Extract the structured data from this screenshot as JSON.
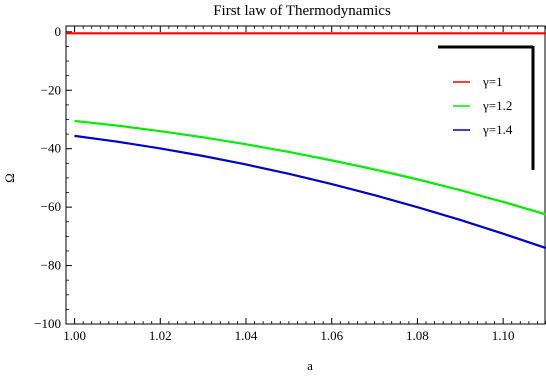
{
  "chart_data": {
    "type": "line",
    "title": "First law of Thermodynamics",
    "xlabel": "a",
    "ylabel": "Ω",
    "xlim": [
      0.998,
      1.11
    ],
    "ylim": [
      -100,
      2
    ],
    "x_ticks": [
      1.0,
      1.02,
      1.04,
      1.06,
      1.08,
      1.1
    ],
    "x_tick_labels": [
      "1.00",
      "1.02",
      "1.04",
      "1.06",
      "1.08",
      "1.10"
    ],
    "y_ticks": [
      0,
      -20,
      -40,
      -60,
      -80,
      -100
    ],
    "y_tick_labels": [
      "0",
      "−20",
      "−40",
      "−60",
      "−80",
      "−100"
    ],
    "grid": false,
    "legend_position": "top-right",
    "series": [
      {
        "name": "γ=1",
        "color": "#ff0000",
        "x": [
          0.998,
          1.11
        ],
        "y": [
          -0.5,
          -0.5
        ]
      },
      {
        "name": "γ=1.2",
        "color": "#00ee00",
        "x": [
          1.0,
          1.01,
          1.02,
          1.03,
          1.04,
          1.05,
          1.06,
          1.07,
          1.08,
          1.09,
          1.1,
          1.11
        ],
        "y": [
          -30.5,
          -32.1,
          -34.0,
          -36.1,
          -38.5,
          -41.1,
          -44.0,
          -47.1,
          -50.5,
          -54.2,
          -58.2,
          -62.5
        ]
      },
      {
        "name": "γ=1.4",
        "color": "#0000cc",
        "x": [
          1.0,
          1.01,
          1.02,
          1.03,
          1.04,
          1.05,
          1.06,
          1.07,
          1.08,
          1.09,
          1.1,
          1.11
        ],
        "y": [
          -35.6,
          -37.6,
          -39.9,
          -42.5,
          -45.4,
          -48.6,
          -52.1,
          -55.9,
          -60.0,
          -64.4,
          -69.1,
          -74.0
        ]
      }
    ]
  }
}
